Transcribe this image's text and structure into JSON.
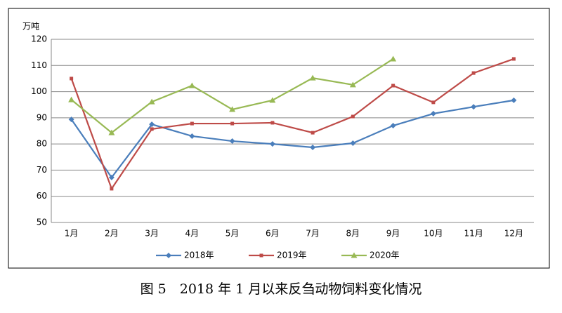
{
  "chart_data": {
    "type": "line",
    "caption": "图 5　2018 年 1 月以来反刍动物饲料变化情况",
    "y_label": "万吨",
    "categories": [
      "1月",
      "2月",
      "3月",
      "4月",
      "5月",
      "6月",
      "7月",
      "8月",
      "9月",
      "10月",
      "11月",
      "12月"
    ],
    "series": [
      {
        "name": "2018年",
        "color": "#4a7ebb",
        "marker": "diamond",
        "values": [
          89.4,
          67.2,
          87.5,
          83,
          81.1,
          80,
          78.7,
          80.3,
          87,
          91.6,
          94.2,
          96.7
        ]
      },
      {
        "name": "2019年",
        "color": "#be4b48",
        "marker": "square",
        "values": [
          105,
          62.9,
          85.7,
          87.8,
          87.8,
          88.1,
          84.3,
          90.5,
          102.3,
          95.9,
          107.1,
          112.5
        ]
      },
      {
        "name": "2020年",
        "color": "#98b954",
        "marker": "triangle",
        "values": [
          96.9,
          84.3,
          96.1,
          102.3,
          93.2,
          96.7,
          105.2,
          102.6,
          112.5,
          null,
          null,
          null
        ]
      }
    ],
    "ylim": [
      50,
      120
    ],
    "yticks": [
      50,
      60,
      70,
      80,
      90,
      100,
      110,
      120
    ],
    "grid": true,
    "legend": "bottom"
  }
}
